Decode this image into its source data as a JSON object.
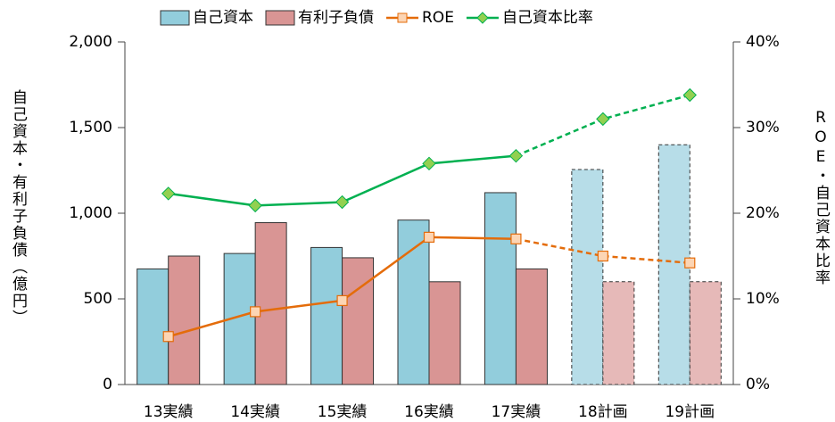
{
  "chart_data": {
    "type": "bar-line",
    "categories": [
      "13実績",
      "14実績",
      "15実績",
      "16実績",
      "17実績",
      "18計画",
      "19計画"
    ],
    "planned": [
      false,
      false,
      false,
      false,
      false,
      true,
      true
    ],
    "series": [
      {
        "name": "自己資本",
        "kind": "bar",
        "color": "#92cddc",
        "planned_color": "#b7dde8",
        "values": [
          675,
          765,
          800,
          960,
          1120,
          1255,
          1400
        ]
      },
      {
        "name": "有利子負債",
        "kind": "bar",
        "color": "#d99594",
        "planned_color": "#e6b9b8",
        "values": [
          750,
          945,
          740,
          600,
          675,
          600,
          600
        ]
      },
      {
        "name": "ROE",
        "kind": "line",
        "axis": "y2",
        "color": "#e46c0a",
        "marker": "square",
        "marker_color": "#fcd5b4",
        "values": [
          5.6,
          8.5,
          9.8,
          17.2,
          17.0,
          15.0,
          14.2
        ]
      },
      {
        "name": "自己資本比率",
        "kind": "line",
        "axis": "y2",
        "color": "#00b050",
        "marker": "diamond",
        "marker_color": "#92d050",
        "values": [
          22.3,
          20.9,
          21.3,
          25.8,
          26.7,
          31.0,
          33.8
        ]
      }
    ],
    "ylabel": "自己資本・有利子負債（億円）",
    "y2label": "ROE・自己資本比率",
    "ylim": [
      0,
      2000
    ],
    "yticks": [
      0,
      500,
      {
        "value": 1000,
        "label": "1,000"
      },
      {
        "value": 1500,
        "label": "1,500"
      },
      {
        "value": 2000,
        "label": "2,000"
      }
    ],
    "y2lim": [
      0,
      40
    ],
    "y2ticks": [
      {
        "value": 0,
        "label": "0%"
      },
      {
        "value": 10,
        "label": "10%"
      },
      {
        "value": 20,
        "label": "20%"
      },
      {
        "value": 30,
        "label": "30%"
      },
      {
        "value": 40,
        "label": "40%"
      }
    ],
    "grid": false,
    "legend": "top"
  }
}
